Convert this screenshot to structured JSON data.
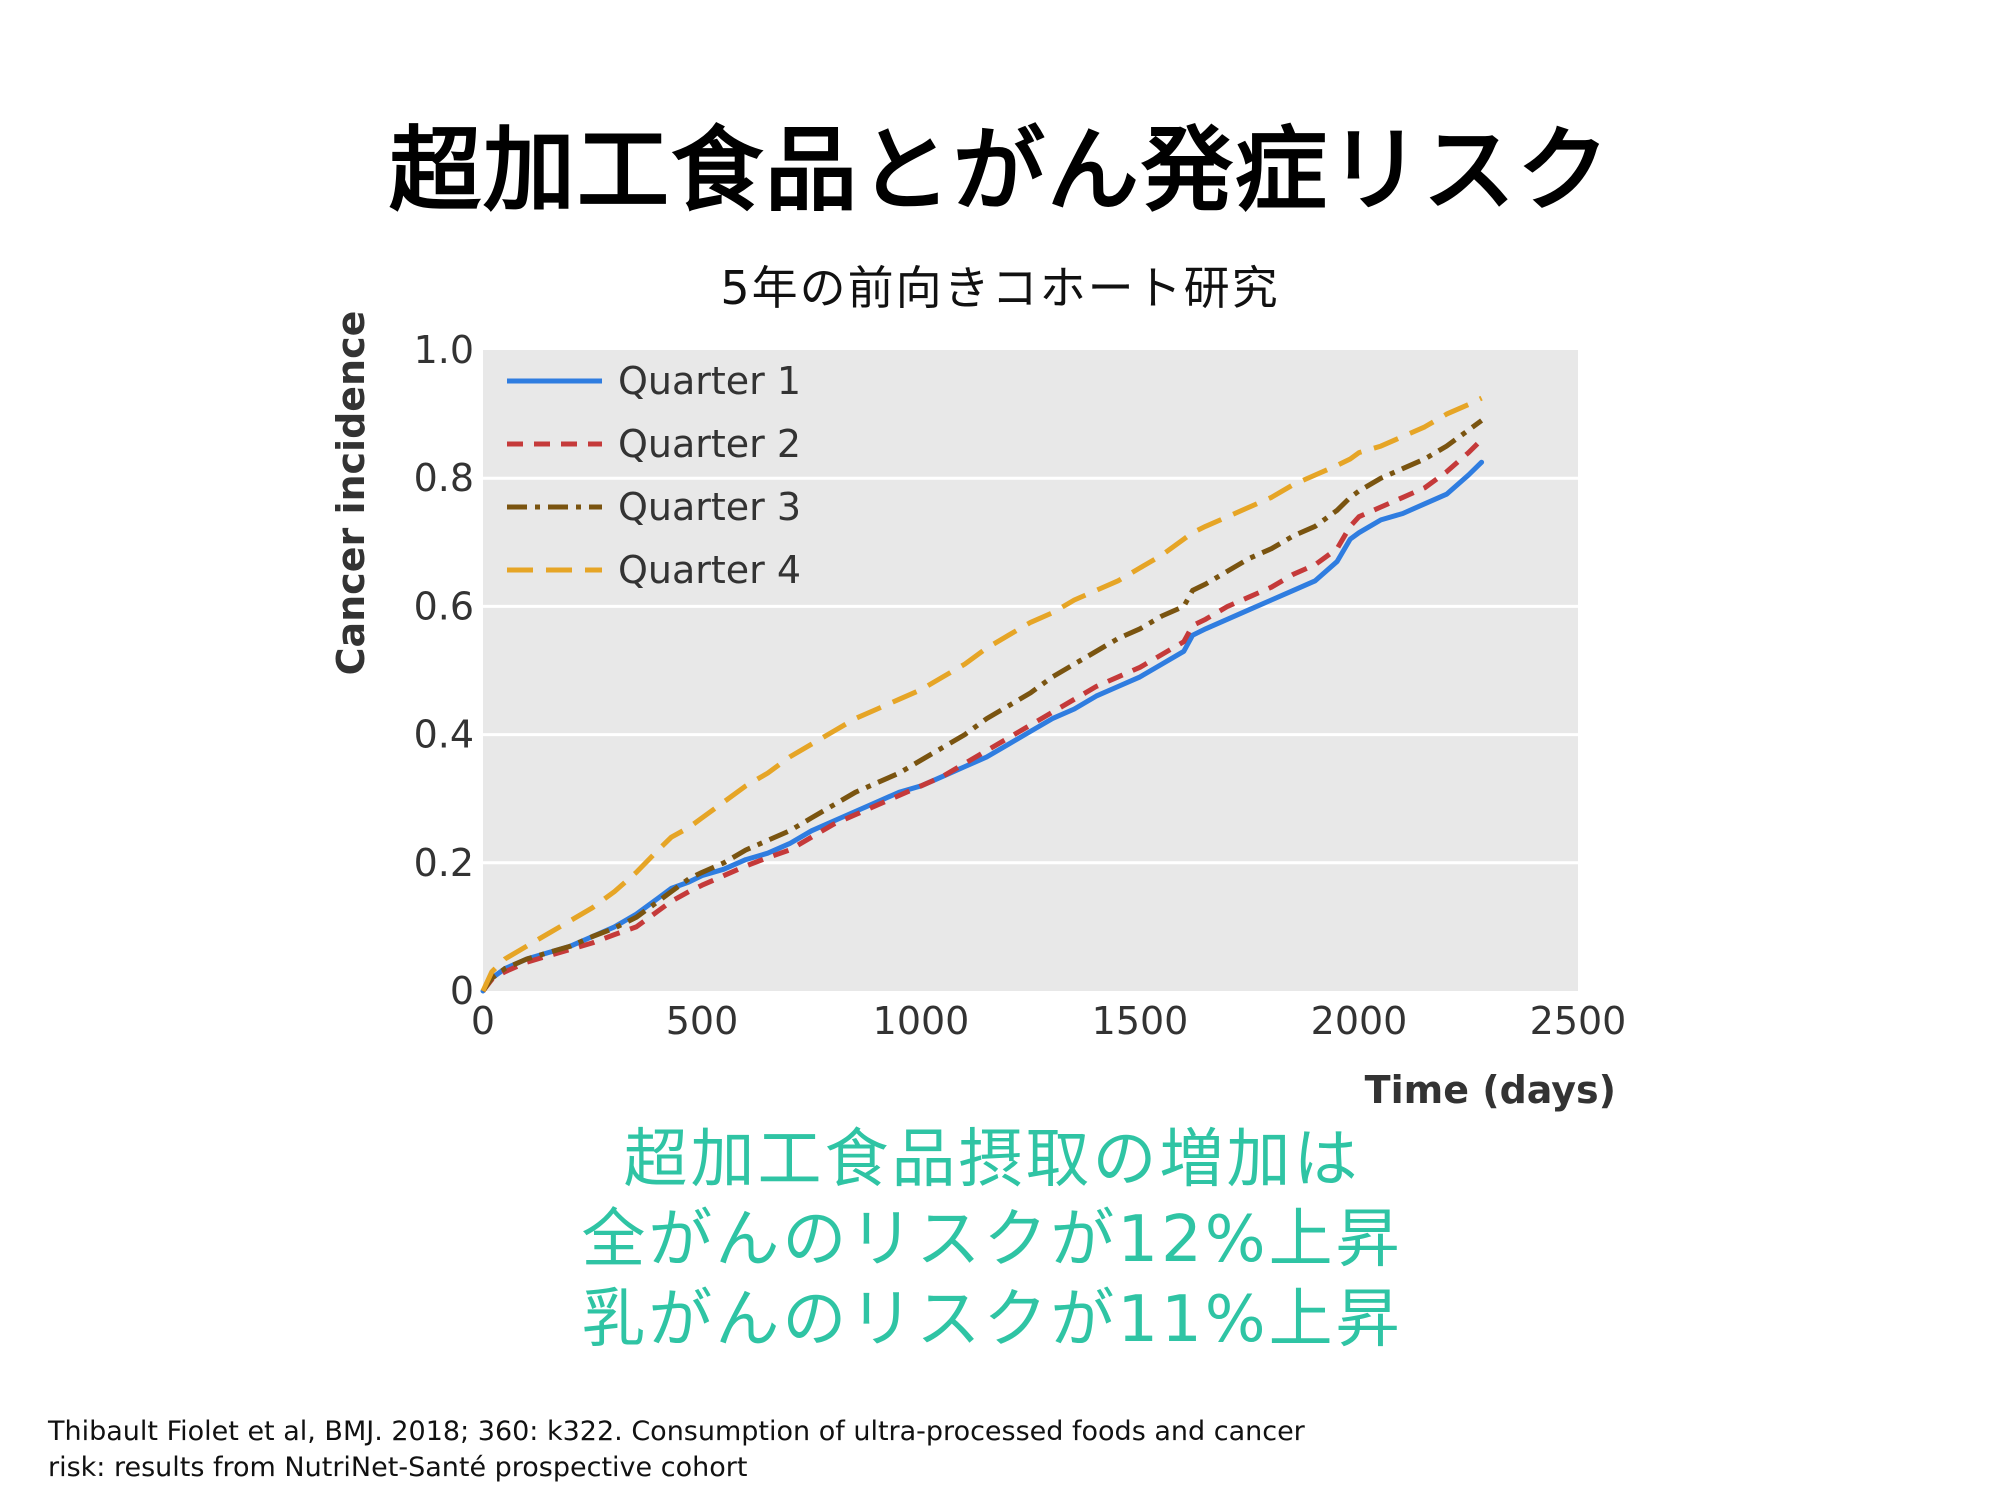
{
  "title": "超加工食品とがん発症リスク",
  "subtitle": "5年の前向きコホート研究",
  "findings": {
    "line1": "超加工食品摂取の増加は",
    "line2": "全がんのリスクが12%上昇",
    "line3": "乳がんのリスクが11%上昇",
    "color": "#2fc4a4"
  },
  "citation": {
    "line1": "Thibault Fiolet et al, BMJ. 2018; 360: k322. Consumption of ultra-processed foods and cancer",
    "line2": "risk: results from NutriNet-Santé prospective cohort"
  },
  "chart_data": {
    "type": "line",
    "xlabel": "Time (days)",
    "ylabel": "Cancer incidence",
    "xlim": [
      0,
      2500
    ],
    "ylim": [
      0,
      1.0
    ],
    "xticks": [
      0,
      500,
      1000,
      1500,
      2000,
      2500
    ],
    "yticks": [
      0,
      0.2,
      0.4,
      0.6,
      0.8,
      1.0
    ],
    "xtick_labels": [
      "0",
      "500",
      "1000",
      "1500",
      "2000",
      "2500"
    ],
    "ytick_labels": [
      "0",
      "0.2",
      "0.4",
      "0.6",
      "0.8",
      "1.0"
    ],
    "grid": "horizontal",
    "legend": "top-left",
    "background": "#e8e8e8",
    "series": [
      {
        "name": "Quarter 1",
        "color": "#2f7de0",
        "dash": "solid",
        "x": [
          0,
          20,
          50,
          100,
          150,
          200,
          250,
          300,
          350,
          400,
          430,
          470,
          500,
          550,
          600,
          650,
          700,
          750,
          800,
          850,
          900,
          950,
          1000,
          1050,
          1100,
          1150,
          1200,
          1250,
          1300,
          1350,
          1400,
          1450,
          1500,
          1550,
          1600,
          1620,
          1650,
          1700,
          1750,
          1800,
          1850,
          1900,
          1950,
          1980,
          2000,
          2050,
          2100,
          2150,
          2200,
          2250,
          2280
        ],
        "y": [
          0,
          0.02,
          0.035,
          0.05,
          0.06,
          0.07,
          0.085,
          0.1,
          0.12,
          0.145,
          0.16,
          0.17,
          0.18,
          0.19,
          0.205,
          0.215,
          0.23,
          0.25,
          0.265,
          0.28,
          0.295,
          0.31,
          0.32,
          0.335,
          0.35,
          0.365,
          0.385,
          0.405,
          0.425,
          0.44,
          0.46,
          0.475,
          0.49,
          0.51,
          0.53,
          0.555,
          0.565,
          0.58,
          0.595,
          0.61,
          0.625,
          0.64,
          0.67,
          0.705,
          0.715,
          0.735,
          0.745,
          0.76,
          0.775,
          0.805,
          0.825
        ]
      },
      {
        "name": "Quarter 2",
        "color": "#c53a3a",
        "dash": "dashed",
        "x": [
          0,
          20,
          50,
          100,
          150,
          200,
          250,
          300,
          350,
          400,
          430,
          470,
          500,
          550,
          600,
          650,
          700,
          750,
          800,
          850,
          900,
          950,
          1000,
          1050,
          1100,
          1150,
          1200,
          1250,
          1300,
          1350,
          1400,
          1450,
          1500,
          1550,
          1600,
          1620,
          1650,
          1700,
          1750,
          1800,
          1850,
          1900,
          1950,
          1980,
          2000,
          2050,
          2100,
          2150,
          2200,
          2250,
          2280
        ],
        "y": [
          0,
          0.018,
          0.03,
          0.045,
          0.055,
          0.065,
          0.075,
          0.088,
          0.1,
          0.125,
          0.14,
          0.155,
          0.165,
          0.18,
          0.195,
          0.208,
          0.22,
          0.24,
          0.26,
          0.275,
          0.29,
          0.305,
          0.32,
          0.335,
          0.355,
          0.375,
          0.395,
          0.415,
          0.435,
          0.455,
          0.475,
          0.49,
          0.505,
          0.525,
          0.545,
          0.57,
          0.58,
          0.6,
          0.615,
          0.63,
          0.65,
          0.665,
          0.69,
          0.725,
          0.74,
          0.755,
          0.77,
          0.785,
          0.81,
          0.84,
          0.86
        ]
      },
      {
        "name": "Quarter 3",
        "color": "#7a5410",
        "dash": "dashdot",
        "x": [
          0,
          20,
          50,
          100,
          150,
          200,
          250,
          300,
          350,
          400,
          430,
          470,
          500,
          550,
          600,
          650,
          700,
          750,
          800,
          850,
          900,
          950,
          1000,
          1050,
          1100,
          1150,
          1200,
          1250,
          1300,
          1350,
          1400,
          1450,
          1500,
          1550,
          1600,
          1620,
          1650,
          1700,
          1750,
          1800,
          1850,
          1900,
          1950,
          1980,
          2000,
          2050,
          2100,
          2150,
          2200,
          2250,
          2280
        ],
        "y": [
          0,
          0.02,
          0.035,
          0.05,
          0.06,
          0.07,
          0.085,
          0.098,
          0.115,
          0.14,
          0.155,
          0.175,
          0.185,
          0.2,
          0.22,
          0.235,
          0.25,
          0.27,
          0.29,
          0.31,
          0.325,
          0.34,
          0.36,
          0.38,
          0.4,
          0.425,
          0.445,
          0.465,
          0.49,
          0.51,
          0.53,
          0.55,
          0.565,
          0.585,
          0.6,
          0.625,
          0.635,
          0.655,
          0.675,
          0.69,
          0.71,
          0.725,
          0.75,
          0.77,
          0.78,
          0.8,
          0.815,
          0.83,
          0.85,
          0.875,
          0.89
        ]
      },
      {
        "name": "Quarter 4",
        "color": "#e6a526",
        "dash": "longdash",
        "x": [
          0,
          20,
          50,
          100,
          150,
          200,
          250,
          300,
          350,
          400,
          430,
          470,
          500,
          550,
          600,
          650,
          700,
          750,
          800,
          850,
          900,
          950,
          1000,
          1050,
          1100,
          1150,
          1200,
          1250,
          1300,
          1350,
          1400,
          1450,
          1500,
          1550,
          1600,
          1620,
          1650,
          1700,
          1750,
          1800,
          1850,
          1900,
          1950,
          1980,
          2000,
          2050,
          2100,
          2150,
          2200,
          2250,
          2280
        ],
        "y": [
          0,
          0.03,
          0.05,
          0.07,
          0.09,
          0.11,
          0.13,
          0.155,
          0.185,
          0.22,
          0.24,
          0.255,
          0.27,
          0.295,
          0.32,
          0.34,
          0.365,
          0.385,
          0.405,
          0.425,
          0.44,
          0.455,
          0.47,
          0.49,
          0.51,
          0.535,
          0.555,
          0.575,
          0.59,
          0.61,
          0.625,
          0.64,
          0.66,
          0.68,
          0.705,
          0.715,
          0.725,
          0.74,
          0.755,
          0.77,
          0.79,
          0.805,
          0.82,
          0.83,
          0.84,
          0.85,
          0.865,
          0.88,
          0.9,
          0.915,
          0.925
        ]
      }
    ]
  }
}
